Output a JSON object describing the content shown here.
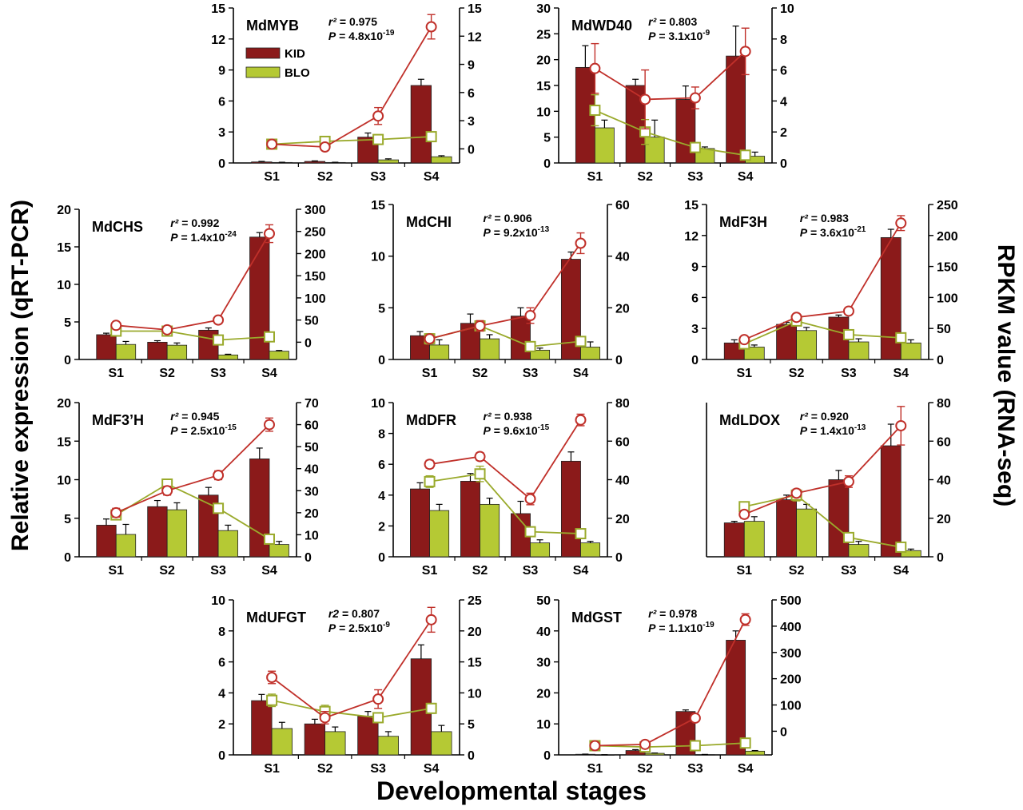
{
  "figure": {
    "ylabel_left": "Relative expression (qRT-PCR)",
    "ylabel_right": "RPKM value (RNA-seq)",
    "xlabel": "Developmental stages",
    "legend": {
      "items": [
        "KID",
        "BLO"
      ]
    }
  },
  "colors": {
    "kid": "#8b1a1a",
    "kid_line": "#c0302a",
    "blo": "#b5c934",
    "blo_line": "#9aaa2c"
  },
  "chart_data": [
    {
      "type": "bar",
      "title": "MdMYB",
      "stats": {
        "r2": "r² = 0.975",
        "p": "P = 4.8x10-19"
      },
      "categories": [
        "S1",
        "S2",
        "S3",
        "S4"
      ],
      "y_left": {
        "lim": [
          0,
          15
        ],
        "ticks": [
          0,
          3,
          6,
          9,
          12,
          15
        ]
      },
      "y_right": {
        "lim": [
          -1.5,
          15
        ],
        "ticks": [
          0,
          3,
          6,
          9,
          12,
          15
        ]
      },
      "series": [
        {
          "name": "KID",
          "values": [
            0.1,
            0.15,
            2.5,
            7.5
          ],
          "errors": [
            0.05,
            0.05,
            0.4,
            0.6
          ]
        },
        {
          "name": "BLO",
          "values": [
            0.05,
            0.05,
            0.3,
            0.6
          ],
          "errors": [
            0.02,
            0.02,
            0.1,
            0.1
          ]
        }
      ],
      "rna_seq": [
        {
          "name": "KID",
          "values": [
            0.5,
            0.2,
            3.5,
            13.0
          ],
          "errors": [
            0.2,
            0.15,
            0.9,
            1.3
          ]
        },
        {
          "name": "BLO",
          "values": [
            0.5,
            0.8,
            1.0,
            1.3
          ],
          "errors": [
            0.2,
            0.2,
            0.2,
            0.3
          ]
        }
      ],
      "legend_position": "top-left"
    },
    {
      "type": "bar",
      "title": "MdWD40",
      "stats": {
        "r2": "r² = 0.803",
        "p": "P = 3.1x10-9"
      },
      "categories": [
        "S1",
        "S2",
        "S3",
        "S4"
      ],
      "y_left": {
        "lim": [
          0,
          30
        ],
        "ticks": [
          0,
          5,
          10,
          15,
          20,
          25,
          30
        ]
      },
      "y_right": {
        "lim": [
          0,
          10
        ],
        "ticks": [
          0,
          2,
          4,
          6,
          8,
          10
        ]
      },
      "series": [
        {
          "name": "KID",
          "values": [
            18.5,
            15.0,
            12.3,
            20.7
          ],
          "errors": [
            4.2,
            1.2,
            2.6,
            5.8
          ]
        },
        {
          "name": "BLO",
          "values": [
            6.8,
            5.0,
            2.8,
            1.3
          ],
          "errors": [
            1.5,
            3.3,
            0.3,
            0.8
          ]
        }
      ],
      "rna_seq": [
        {
          "name": "KID",
          "values": [
            6.1,
            4.1,
            4.2,
            7.2
          ],
          "errors": [
            1.6,
            1.9,
            0.7,
            1.5
          ]
        },
        {
          "name": "BLO",
          "values": [
            3.4,
            2.0,
            1.0,
            0.5
          ],
          "errors": [
            1.0,
            0.8,
            0.2,
            0.2
          ]
        }
      ]
    },
    {
      "type": "bar",
      "title": "MdCHS",
      "stats": {
        "r2": "r² = 0.992",
        "p": "P = 1.4x10-24"
      },
      "categories": [
        "S1",
        "S2",
        "S3",
        "S4"
      ],
      "y_left": {
        "lim": [
          0,
          20
        ],
        "ticks": [
          0,
          5,
          10,
          15,
          20
        ]
      },
      "y_right": {
        "lim": [
          -39,
          300
        ],
        "ticks": [
          0,
          50,
          100,
          150,
          200,
          250,
          300
        ]
      },
      "series": [
        {
          "name": "KID",
          "values": [
            3.3,
            2.3,
            3.9,
            16.3
          ],
          "errors": [
            0.2,
            0.2,
            0.3,
            0.6
          ]
        },
        {
          "name": "BLO",
          "values": [
            2.0,
            1.9,
            0.6,
            1.1
          ],
          "errors": [
            0.4,
            0.3,
            0.1,
            0.1
          ]
        }
      ],
      "rna_seq": [
        {
          "name": "KID",
          "values": [
            38,
            28,
            50,
            245
          ],
          "errors": [
            5,
            4,
            5,
            20
          ]
        },
        {
          "name": "BLO",
          "values": [
            25,
            25,
            5,
            12
          ],
          "errors": [
            3,
            3,
            2,
            3
          ]
        }
      ]
    },
    {
      "type": "bar",
      "title": "MdCHI",
      "stats": {
        "r2": "r² = 0.906",
        "p": "P = 9.2x10-13"
      },
      "categories": [
        "S1",
        "S2",
        "S3",
        "S4"
      ],
      "y_left": {
        "lim": [
          0,
          15
        ],
        "ticks": [
          0,
          5,
          10,
          15
        ]
      },
      "y_right": {
        "lim": [
          0,
          60
        ],
        "ticks": [
          0,
          20,
          40,
          60
        ]
      },
      "series": [
        {
          "name": "KID",
          "values": [
            2.3,
            3.5,
            4.2,
            9.7
          ],
          "errors": [
            0.4,
            0.9,
            0.8,
            0.7
          ]
        },
        {
          "name": "BLO",
          "values": [
            1.4,
            2.0,
            0.9,
            1.2
          ],
          "errors": [
            0.5,
            0.4,
            0.2,
            0.5
          ]
        }
      ],
      "rna_seq": [
        {
          "name": "KID",
          "values": [
            8,
            13,
            17,
            45
          ],
          "errors": [
            1,
            2,
            3,
            4
          ]
        },
        {
          "name": "BLO",
          "values": [
            8,
            13,
            5,
            7
          ],
          "errors": [
            2,
            2,
            1,
            1
          ]
        }
      ]
    },
    {
      "type": "bar",
      "title": "MdF3H",
      "stats": {
        "r2": "r² = 0.983",
        "p": "P = 3.6x10-21"
      },
      "categories": [
        "S1",
        "S2",
        "S3",
        "S4"
      ],
      "y_left": {
        "lim": [
          0,
          15
        ],
        "ticks": [
          0,
          3,
          6,
          9,
          12,
          15
        ]
      },
      "y_right": {
        "lim": [
          0,
          250
        ],
        "ticks": [
          0,
          50,
          100,
          150,
          200,
          250
        ]
      },
      "series": [
        {
          "name": "KID",
          "values": [
            1.6,
            3.4,
            4.1,
            11.8
          ],
          "errors": [
            0.3,
            0.2,
            0.2,
            0.8
          ]
        },
        {
          "name": "BLO",
          "values": [
            1.2,
            2.8,
            1.7,
            1.6
          ],
          "errors": [
            0.2,
            0.3,
            0.3,
            0.3
          ]
        }
      ],
      "rna_seq": [
        {
          "name": "KID",
          "values": [
            32,
            68,
            78,
            220
          ],
          "errors": [
            4,
            4,
            4,
            12
          ]
        },
        {
          "name": "BLO",
          "values": [
            25,
            62,
            40,
            35
          ],
          "errors": [
            4,
            4,
            4,
            4
          ]
        }
      ]
    },
    {
      "type": "bar",
      "title": "MdF3’H",
      "stats": {
        "r2": "r² = 0.945",
        "p": "P = 2.5x10-15"
      },
      "categories": [
        "S1",
        "S2",
        "S3",
        "S4"
      ],
      "y_left": {
        "lim": [
          0,
          20
        ],
        "ticks": [
          0,
          5,
          10,
          15,
          20
        ]
      },
      "y_right": {
        "lim": [
          0,
          70
        ],
        "ticks": [
          0,
          10,
          20,
          30,
          40,
          50,
          60,
          70
        ]
      },
      "series": [
        {
          "name": "KID",
          "values": [
            4.1,
            6.5,
            8.0,
            12.7
          ],
          "errors": [
            0.8,
            0.8,
            1.0,
            1.4
          ]
        },
        {
          "name": "BLO",
          "values": [
            2.9,
            6.1,
            3.4,
            1.6
          ],
          "errors": [
            1.3,
            0.9,
            0.7,
            0.4
          ]
        }
      ],
      "rna_seq": [
        {
          "name": "KID",
          "values": [
            20,
            30,
            37,
            60
          ],
          "errors": [
            2,
            2,
            2,
            3
          ]
        },
        {
          "name": "BLO",
          "values": [
            19,
            33,
            22,
            8
          ],
          "errors": [
            2,
            2,
            2,
            1
          ]
        }
      ]
    },
    {
      "type": "bar",
      "title": "MdDFR",
      "stats": {
        "r2": "r² = 0.938",
        "p": "P = 9.6x10-15"
      },
      "categories": [
        "S1",
        "S2",
        "S3",
        "S4"
      ],
      "y_left": {
        "lim": [
          0,
          10
        ],
        "ticks": [
          0,
          2,
          4,
          6,
          8,
          10
        ]
      },
      "y_right": {
        "lim": [
          0,
          80
        ],
        "ticks": [
          0,
          20,
          40,
          60,
          80
        ]
      },
      "series": [
        {
          "name": "KID",
          "values": [
            4.4,
            4.9,
            2.8,
            6.2
          ],
          "errors": [
            0.4,
            0.5,
            0.8,
            0.6
          ]
        },
        {
          "name": "BLO",
          "values": [
            3.0,
            3.4,
            0.9,
            0.9
          ],
          "errors": [
            0.4,
            0.4,
            0.2,
            0.1
          ]
        }
      ],
      "rna_seq": [
        {
          "name": "KID",
          "values": [
            48,
            52,
            30,
            71
          ],
          "errors": [
            2,
            2,
            3,
            3
          ]
        },
        {
          "name": "BLO",
          "values": [
            39,
            43,
            13,
            12
          ],
          "errors": [
            3,
            4,
            2,
            1
          ]
        }
      ]
    },
    {
      "type": "bar",
      "title": "MdLDOX",
      "stats": {
        "r2": "r² = 0.920",
        "p": "P = 1.4x10-13"
      },
      "categories": [
        "S1",
        "S2",
        "S3",
        "S4"
      ],
      "y_left": {
        "lim": [
          0,
          10
        ],
        "ticks": []
      },
      "y_right": {
        "lim": [
          0,
          80
        ],
        "ticks": [
          0,
          20,
          40,
          60,
          80
        ]
      },
      "series": [
        {
          "name": "KID",
          "values": [
            2.2,
            3.7,
            5.0,
            7.2
          ],
          "errors": [
            0.1,
            0.3,
            0.6,
            1.4
          ]
        },
        {
          "name": "BLO",
          "values": [
            2.3,
            3.1,
            0.8,
            0.4
          ],
          "errors": [
            0.3,
            0.3,
            0.2,
            0.1
          ]
        }
      ],
      "rna_seq": [
        {
          "name": "KID",
          "values": [
            22,
            33,
            39,
            68
          ],
          "errors": [
            2,
            2,
            3,
            10
          ]
        },
        {
          "name": "BLO",
          "values": [
            26,
            32,
            10,
            5
          ],
          "errors": [
            2,
            3,
            2,
            1
          ]
        }
      ]
    },
    {
      "type": "bar",
      "title": "MdUFGT",
      "stats": {
        "r2": "r2 = 0.807",
        "p": "P = 2.5x10-9"
      },
      "categories": [
        "S1",
        "S2",
        "S3",
        "S4"
      ],
      "y_left": {
        "lim": [
          0,
          10
        ],
        "ticks": [
          0,
          2,
          4,
          6,
          8,
          10
        ]
      },
      "y_right": {
        "lim": [
          0,
          25
        ],
        "ticks": [
          0,
          5,
          10,
          15,
          20,
          25
        ]
      },
      "series": [
        {
          "name": "KID",
          "values": [
            3.5,
            2.0,
            2.5,
            6.2
          ],
          "errors": [
            0.4,
            0.3,
            0.3,
            0.9
          ]
        },
        {
          "name": "BLO",
          "values": [
            1.7,
            1.5,
            1.2,
            1.5
          ],
          "errors": [
            0.4,
            0.3,
            0.3,
            0.4
          ]
        }
      ],
      "rna_seq": [
        {
          "name": "KID",
          "values": [
            12.5,
            6.0,
            9.0,
            21.8
          ],
          "errors": [
            1.0,
            1.0,
            1.5,
            2.0
          ]
        },
        {
          "name": "BLO",
          "values": [
            8.8,
            7.0,
            6.0,
            7.5
          ],
          "errors": [
            1.0,
            1.0,
            0.8,
            0.8
          ]
        }
      ]
    },
    {
      "type": "bar",
      "title": "MdGST",
      "stats": {
        "r2": "r² = 0.978",
        "p": "P = 1.1x10-19"
      },
      "categories": [
        "S1",
        "S2",
        "S3",
        "S4"
      ],
      "y_left": {
        "lim": [
          0,
          50
        ],
        "ticks": [
          0,
          10,
          20,
          30,
          40,
          50
        ]
      },
      "y_right": {
        "lim": [
          -90,
          500
        ],
        "ticks": [
          0,
          100,
          200,
          300,
          400,
          500
        ]
      },
      "series": [
        {
          "name": "KID",
          "values": [
            0.2,
            1.4,
            14.0,
            37.0
          ],
          "errors": [
            0.05,
            0.3,
            0.5,
            3.0
          ]
        },
        {
          "name": "BLO",
          "values": [
            0.05,
            0.5,
            0.1,
            1.2
          ],
          "errors": [
            0.02,
            0.1,
            0.05,
            0.2
          ]
        }
      ],
      "rna_seq": [
        {
          "name": "KID",
          "values": [
            -55,
            -50,
            50,
            425
          ],
          "errors": [
            5,
            8,
            10,
            22
          ]
        },
        {
          "name": "BLO",
          "values": [
            -55,
            -60,
            -55,
            -45
          ],
          "errors": [
            4,
            4,
            4,
            4
          ]
        }
      ]
    }
  ]
}
